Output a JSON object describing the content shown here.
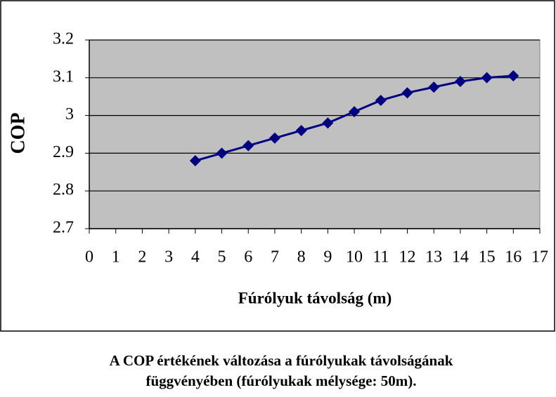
{
  "chart_data": {
    "type": "line",
    "xlabel": "Fúrólyuk távolság (m)",
    "ylabel": "COP",
    "caption": [
      "A COP értékének változása a fúrólyukak távolságának",
      "függvényében (fúrólyukak mélysége: 50m)."
    ],
    "x": [
      4,
      5,
      6,
      7,
      8,
      9,
      10,
      11,
      12,
      13,
      14,
      15,
      16
    ],
    "series": [
      {
        "color": "#000080",
        "values": [
          2.88,
          2.9,
          2.92,
          2.94,
          2.96,
          2.98,
          3.01,
          3.04,
          3.06,
          3.075,
          3.09,
          3.1,
          3.105
        ]
      }
    ],
    "xlim": [
      0,
      17
    ],
    "xticks": [
      0,
      1,
      2,
      3,
      4,
      5,
      6,
      7,
      8,
      9,
      10,
      11,
      12,
      13,
      14,
      15,
      16,
      17
    ],
    "ylim": [
      2.7,
      3.2
    ],
    "yticks": [
      2.7,
      2.8,
      2.9,
      3,
      3.1,
      3.2
    ],
    "grid": true,
    "plot_background": "#c0c0c0"
  }
}
